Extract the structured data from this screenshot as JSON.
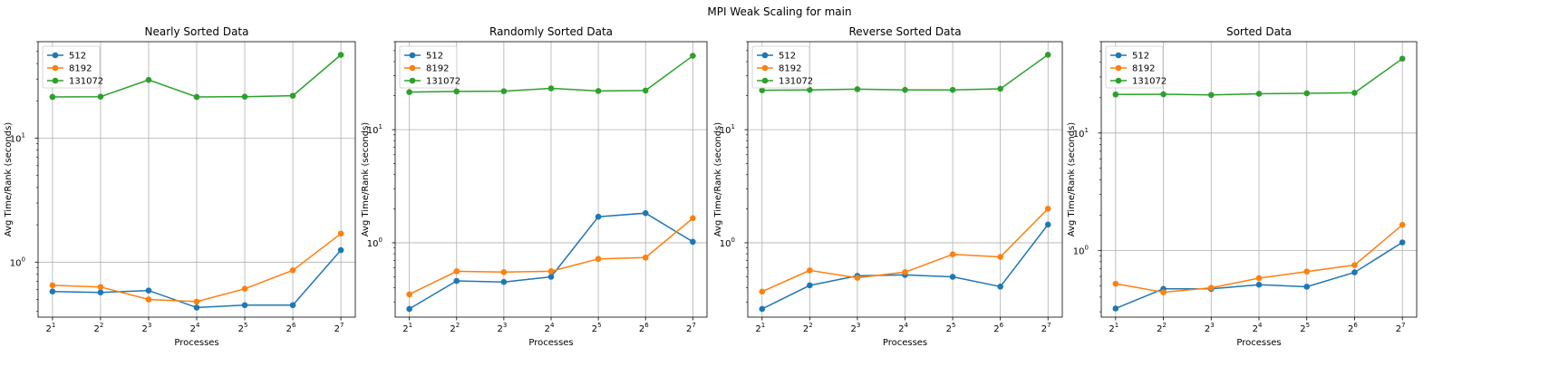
{
  "figure": {
    "title": "MPI Weak Scaling for main"
  },
  "colors": {
    "512": "#1f77b4",
    "8192": "#ff7f0e",
    "131072": "#2ca02c"
  },
  "chart_data": [
    {
      "type": "line",
      "title": "Nearly Sorted Data",
      "xlabel": "Processes",
      "ylabel": "Avg Time/Rank (seconds)",
      "x": [
        2,
        4,
        8,
        16,
        32,
        64,
        128
      ],
      "x_tick_labels": [
        [
          "2",
          "1"
        ],
        [
          "2",
          "2"
        ],
        [
          "2",
          "3"
        ],
        [
          "2",
          "4"
        ],
        [
          "2",
          "5"
        ],
        [
          "2",
          "6"
        ],
        [
          "2",
          "7"
        ]
      ],
      "x_scale": "log2",
      "y_scale": "log10",
      "ylim": [
        0.36,
        60
      ],
      "y_ticks": [
        {
          "base": "10",
          "exp": "0",
          "value": 1
        },
        {
          "base": "10",
          "exp": "1",
          "value": 10
        }
      ],
      "grid": true,
      "legend": "upper-left",
      "series": [
        {
          "name": "512",
          "values": [
            0.58,
            0.57,
            0.59,
            0.43,
            0.45,
            0.45,
            1.25
          ]
        },
        {
          "name": "8192",
          "values": [
            0.65,
            0.63,
            0.5,
            0.48,
            0.61,
            0.86,
            1.7
          ]
        },
        {
          "name": "131072",
          "values": [
            21.5,
            21.6,
            29.5,
            21.5,
            21.6,
            22.0,
            47.0
          ]
        }
      ]
    },
    {
      "type": "line",
      "title": "Randomly Sorted Data",
      "xlabel": "Processes",
      "ylabel": "Avg Time/Rank (seconds)",
      "x": [
        2,
        4,
        8,
        16,
        32,
        64,
        128
      ],
      "x_tick_labels": [
        [
          "2",
          "1"
        ],
        [
          "2",
          "2"
        ],
        [
          "2",
          "3"
        ],
        [
          "2",
          "4"
        ],
        [
          "2",
          "5"
        ],
        [
          "2",
          "6"
        ],
        [
          "2",
          "7"
        ]
      ],
      "x_scale": "log2",
      "y_scale": "log10",
      "ylim": [
        0.22,
        60
      ],
      "y_ticks": [
        {
          "base": "10",
          "exp": "0",
          "value": 1
        },
        {
          "base": "10",
          "exp": "1",
          "value": 10
        }
      ],
      "grid": true,
      "legend": "upper-left",
      "series": [
        {
          "name": "512",
          "values": [
            0.26,
            0.46,
            0.45,
            0.5,
            1.7,
            1.83,
            1.02
          ]
        },
        {
          "name": "8192",
          "values": [
            0.35,
            0.56,
            0.55,
            0.56,
            0.72,
            0.74,
            1.65
          ]
        },
        {
          "name": "131072",
          "values": [
            21.5,
            21.8,
            21.9,
            23.2,
            22.0,
            22.2,
            45.0
          ]
        }
      ]
    },
    {
      "type": "line",
      "title": "Reverse Sorted Data",
      "xlabel": "Processes",
      "ylabel": "Avg Time/Rank (seconds)",
      "x": [
        2,
        4,
        8,
        16,
        32,
        64,
        128
      ],
      "x_tick_labels": [
        [
          "2",
          "1"
        ],
        [
          "2",
          "2"
        ],
        [
          "2",
          "3"
        ],
        [
          "2",
          "4"
        ],
        [
          "2",
          "5"
        ],
        [
          "2",
          "6"
        ],
        [
          "2",
          "7"
        ]
      ],
      "x_scale": "log2",
      "y_scale": "log10",
      "ylim": [
        0.22,
        60
      ],
      "y_ticks": [
        {
          "base": "10",
          "exp": "0",
          "value": 1
        },
        {
          "base": "10",
          "exp": "1",
          "value": 10
        }
      ],
      "grid": true,
      "legend": "upper-left",
      "series": [
        {
          "name": "512",
          "values": [
            0.26,
            0.42,
            0.51,
            0.52,
            0.5,
            0.41,
            1.45
          ]
        },
        {
          "name": "8192",
          "values": [
            0.37,
            0.57,
            0.49,
            0.55,
            0.79,
            0.75,
            2.0
          ]
        },
        {
          "name": "131072",
          "values": [
            22.3,
            22.5,
            22.8,
            22.5,
            22.5,
            23.0,
            46.0
          ]
        }
      ]
    },
    {
      "type": "line",
      "title": "Sorted Data",
      "xlabel": "Processes",
      "ylabel": "Avg Time/Rank (seconds)",
      "x": [
        2,
        4,
        8,
        16,
        32,
        64,
        128
      ],
      "x_tick_labels": [
        [
          "2",
          "1"
        ],
        [
          "2",
          "2"
        ],
        [
          "2",
          "3"
        ],
        [
          "2",
          "4"
        ],
        [
          "2",
          "5"
        ],
        [
          "2",
          "6"
        ],
        [
          "2",
          "7"
        ]
      ],
      "x_scale": "log2",
      "y_scale": "log10",
      "ylim": [
        0.27,
        60
      ],
      "y_ticks": [
        {
          "base": "10",
          "exp": "0",
          "value": 1
        },
        {
          "base": "10",
          "exp": "1",
          "value": 10
        }
      ],
      "grid": true,
      "legend": "upper-left",
      "series": [
        {
          "name": "512",
          "values": [
            0.32,
            0.47,
            0.47,
            0.51,
            0.49,
            0.65,
            1.17
          ]
        },
        {
          "name": "8192",
          "values": [
            0.52,
            0.44,
            0.48,
            0.58,
            0.66,
            0.75,
            1.65
          ]
        },
        {
          "name": "131072",
          "values": [
            21.3,
            21.4,
            21.1,
            21.6,
            21.8,
            22.0,
            43.0
          ]
        }
      ]
    }
  ]
}
